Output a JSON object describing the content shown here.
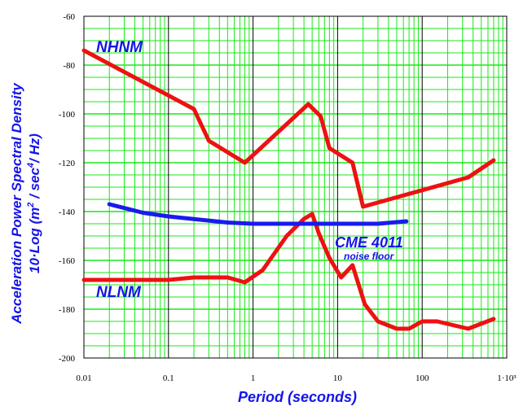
{
  "chart_data": {
    "type": "line",
    "xscale": "log",
    "xlim": [
      0.01,
      1000
    ],
    "ylim": [
      -200,
      -60
    ],
    "xlabel": "Period (seconds)",
    "ylabel_line1": "Acceleration Power Spectral Density",
    "ylabel_line2": "10·Log (m",
    "ylabel_sup1": "2",
    "ylabel_line2b": " / sec",
    "ylabel_sup2": "4",
    "ylabel_line2c": "/ Hz)",
    "x_ticks": [
      {
        "value": 0.01,
        "label": "0.01"
      },
      {
        "value": 0.1,
        "label": "0.1"
      },
      {
        "value": 1,
        "label": "1"
      },
      {
        "value": 10,
        "label": "10"
      },
      {
        "value": 100,
        "label": "100"
      },
      {
        "value": 1000,
        "label": "1·10³"
      }
    ],
    "y_ticks": [
      {
        "value": -60,
        "label": "-60"
      },
      {
        "value": -80,
        "label": "-80"
      },
      {
        "value": -100,
        "label": "-100"
      },
      {
        "value": -120,
        "label": "-120"
      },
      {
        "value": -140,
        "label": "-140"
      },
      {
        "value": -160,
        "label": "-160"
      },
      {
        "value": -180,
        "label": "-180"
      },
      {
        "value": -200,
        "label": "-200"
      }
    ],
    "grid": true,
    "colors": {
      "minor_grid": "#18e818",
      "major_grid": "#000000",
      "nhnm": "#ee1111",
      "nlnm": "#ee1111",
      "noise_floor": "#1a1aee",
      "label": "#1515e8"
    },
    "series": [
      {
        "name": "NHNM",
        "color": "#ee1111",
        "points": [
          [
            0.01,
            -74
          ],
          [
            0.2,
            -98
          ],
          [
            0.3,
            -111
          ],
          [
            0.8,
            -120
          ],
          [
            4.5,
            -96
          ],
          [
            6.3,
            -101
          ],
          [
            8,
            -114
          ],
          [
            15,
            -120
          ],
          [
            20,
            -138
          ],
          [
            350,
            -126
          ],
          [
            700,
            -119
          ]
        ]
      },
      {
        "name": "NLNM",
        "color": "#ee1111",
        "points": [
          [
            0.01,
            -168
          ],
          [
            0.1,
            -168
          ],
          [
            0.2,
            -167
          ],
          [
            0.5,
            -167
          ],
          [
            0.8,
            -169
          ],
          [
            1.3,
            -164
          ],
          [
            2.5,
            -150
          ],
          [
            4,
            -143
          ],
          [
            5,
            -141
          ],
          [
            6,
            -149
          ],
          [
            8,
            -159
          ],
          [
            11,
            -167
          ],
          [
            15,
            -162
          ],
          [
            21,
            -178
          ],
          [
            30,
            -185
          ],
          [
            50,
            -188
          ],
          [
            70,
            -188
          ],
          [
            100,
            -185
          ],
          [
            150,
            -185
          ],
          [
            350,
            -188
          ],
          [
            700,
            -184
          ]
        ]
      },
      {
        "name": "CME 4011 noise floor",
        "color": "#1a1aee",
        "points": [
          [
            0.02,
            -137
          ],
          [
            0.05,
            -140.5
          ],
          [
            0.1,
            -142
          ],
          [
            0.5,
            -144.5
          ],
          [
            1,
            -145
          ],
          [
            10,
            -145
          ],
          [
            30,
            -145
          ],
          [
            65,
            -144
          ]
        ]
      }
    ],
    "annotations": {
      "nhnm": "NHNM",
      "nlnm": "NLNM",
      "cme_main": "CME 4011",
      "cme_sub": "noise floor"
    }
  }
}
